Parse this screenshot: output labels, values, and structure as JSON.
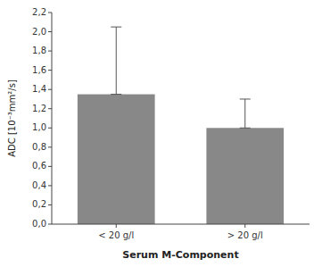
{
  "chart_data": {
    "type": "bar",
    "categories": [
      "< 20 g/l",
      "> 20 g/l"
    ],
    "values": [
      1.35,
      1.0
    ],
    "errors_up": [
      0.7,
      0.3
    ],
    "errors_down": [
      0.0,
      0.0
    ],
    "color": "#888888",
    "error_color": "#555555",
    "ylim": [
      0.0,
      2.2
    ],
    "yticks": [
      {
        "value": 0.0,
        "label": "0,0"
      },
      {
        "value": 0.2,
        "label": "0,2"
      },
      {
        "value": 0.4,
        "label": "0,4"
      },
      {
        "value": 0.6,
        "label": "0,6"
      },
      {
        "value": 0.8,
        "label": "0,8"
      },
      {
        "value": 1.0,
        "label": "1,0"
      },
      {
        "value": 1.2,
        "label": "1,2"
      },
      {
        "value": 1.4,
        "label": "1,4"
      },
      {
        "value": 1.6,
        "label": "1,6"
      },
      {
        "value": 1.8,
        "label": "1,8"
      },
      {
        "value": 2.0,
        "label": "2,0"
      },
      {
        "value": 2.2,
        "label": "2,2"
      }
    ],
    "ylabel": "ADC [10⁻³mm²/s]",
    "xlabel": "Serum M-Component",
    "grid": false
  }
}
